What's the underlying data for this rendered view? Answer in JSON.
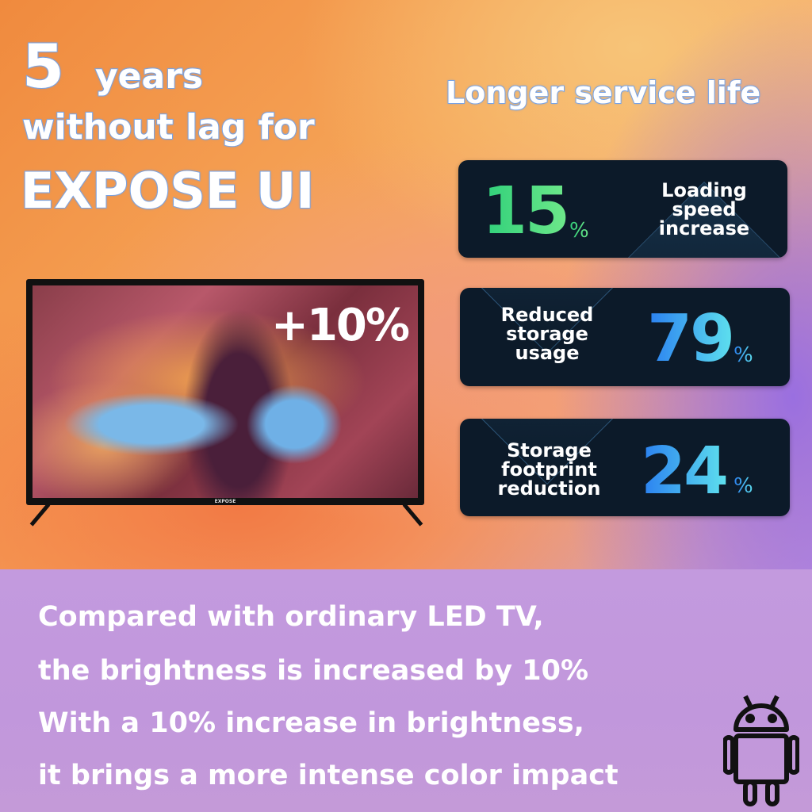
{
  "headline": {
    "number": "5",
    "years": "years",
    "line2": "without lag for",
    "line3": "EXPOSE UI"
  },
  "subtitle": "Longer service life",
  "stats": [
    {
      "value": "15",
      "unit": "%",
      "label": [
        "Loading",
        "speed",
        "increase"
      ],
      "color": "#3fdc7e"
    },
    {
      "value": "79",
      "unit": "%",
      "label": [
        "Reduced",
        "storage",
        "usage"
      ],
      "color": "#3a9ff0"
    },
    {
      "value": "24",
      "unit": "%",
      "label": [
        "Storage",
        "footprint",
        "reduction"
      ],
      "color": "#3a9ff0"
    }
  ],
  "tv": {
    "brightness_badge": "+10%",
    "brand": "EXPOSE"
  },
  "description": [
    "Compared with ordinary LED TV,",
    "the brightness is increased by 10%",
    "With a 10% increase in brightness,",
    "it brings a more intense color impact"
  ],
  "icons": {
    "platform": "android-icon"
  }
}
